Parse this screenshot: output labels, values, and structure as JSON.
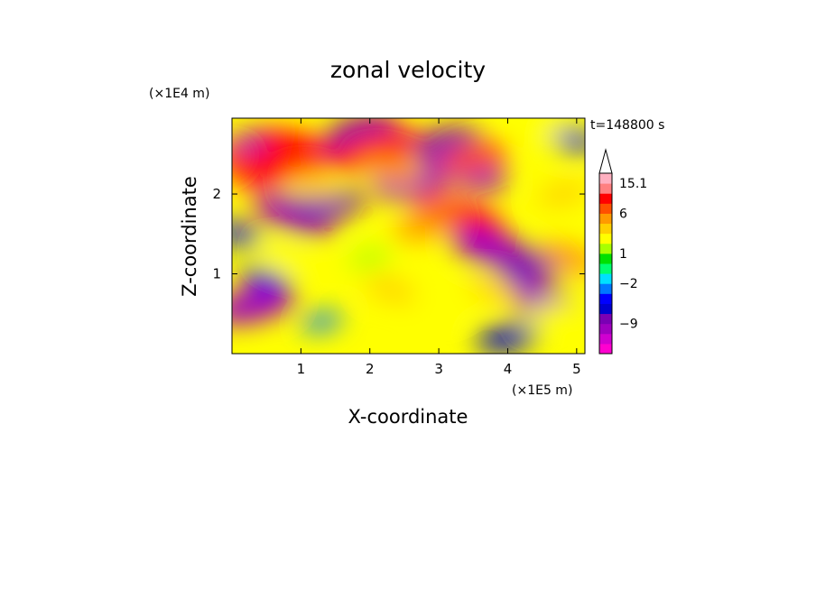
{
  "chart_data": {
    "type": "heatmap",
    "title": "zonal velocity",
    "xlabel": "X-coordinate",
    "ylabel": "Z-coordinate",
    "x_unit": "(×1E5 m)",
    "y_unit": "(×1E4 m)",
    "time_label": "t=148800 s",
    "xlim": [
      0,
      5.12
    ],
    "ylim": [
      0,
      2.95
    ],
    "x_ticks": [
      1,
      2,
      3,
      4,
      5
    ],
    "y_ticks": [
      1,
      2
    ],
    "colorbar": {
      "levels": [
        -15,
        -12,
        -9,
        -7,
        -5,
        -3,
        -2,
        -1,
        0,
        1,
        2,
        3,
        4,
        6,
        9,
        12,
        15.1
      ],
      "labels": [
        "15.1",
        "6",
        "1",
        "−2",
        "−9"
      ],
      "label_values": [
        15.1,
        6,
        1,
        -2,
        -9
      ],
      "colors": [
        "#ff00d0",
        "#d000d0",
        "#a000c0",
        "#7a00b4",
        "#0000d0",
        "#0000ff",
        "#0078ff",
        "#00e0ff",
        "#00ff70",
        "#00e000",
        "#a8ff00",
        "#ffff00",
        "#ffd000",
        "#ff9a00",
        "#ff5000",
        "#ff0000",
        "#ff8080",
        "#ffb0c0"
      ],
      "extend_max": true
    },
    "features": [
      {
        "x": 0.35,
        "z": 2.6,
        "u": -9
      },
      {
        "x": 0.2,
        "z": 2.35,
        "u": 9
      },
      {
        "x": 0.65,
        "z": 2.35,
        "u": 12
      },
      {
        "x": 1.0,
        "z": 2.55,
        "u": 10
      },
      {
        "x": 1.9,
        "z": 2.8,
        "u": -8
      },
      {
        "x": 1.8,
        "z": 2.45,
        "u": -6
      },
      {
        "x": 2.1,
        "z": 2.55,
        "u": 12
      },
      {
        "x": 0.9,
        "z": 1.75,
        "u": -10
      },
      {
        "x": 1.4,
        "z": 1.85,
        "u": -8
      },
      {
        "x": 1.2,
        "z": 2.1,
        "u": 4
      },
      {
        "x": 2.6,
        "z": 2.15,
        "u": -9
      },
      {
        "x": 2.3,
        "z": 2.3,
        "u": 6
      },
      {
        "x": 3.1,
        "z": 2.65,
        "u": -7
      },
      {
        "x": 3.4,
        "z": 2.3,
        "u": -10
      },
      {
        "x": 3.5,
        "z": 2.45,
        "u": 8
      },
      {
        "x": 3.3,
        "z": 1.7,
        "u": 12
      },
      {
        "x": 2.8,
        "z": 1.6,
        "u": 6
      },
      {
        "x": 3.8,
        "z": 1.3,
        "u": -11
      },
      {
        "x": 4.4,
        "z": 1.1,
        "u": -8
      },
      {
        "x": 4.9,
        "z": 1.2,
        "u": 6
      },
      {
        "x": 4.8,
        "z": 2.0,
        "u": 4
      },
      {
        "x": 4.4,
        "z": 0.7,
        "u": -9
      },
      {
        "x": 4.0,
        "z": 0.2,
        "u": -6
      },
      {
        "x": 3.8,
        "z": 0.8,
        "u": 4
      },
      {
        "x": 4.6,
        "z": 0.5,
        "u": 3
      },
      {
        "x": 0.5,
        "z": 0.9,
        "u": -4
      },
      {
        "x": 0.3,
        "z": 0.6,
        "u": -10
      },
      {
        "x": 0.8,
        "z": 1.2,
        "u": 3
      },
      {
        "x": 1.3,
        "z": 0.4,
        "u": -2
      },
      {
        "x": 2.3,
        "z": 0.8,
        "u": 4
      },
      {
        "x": 3.0,
        "z": 0.6,
        "u": 3
      },
      {
        "x": 0.1,
        "z": 1.5,
        "u": -3
      },
      {
        "x": 2.0,
        "z": 1.2,
        "u": 2
      },
      {
        "x": 4.9,
        "z": 2.7,
        "u": -4
      },
      {
        "x": 4.5,
        "z": 2.8,
        "u": 3
      }
    ]
  }
}
